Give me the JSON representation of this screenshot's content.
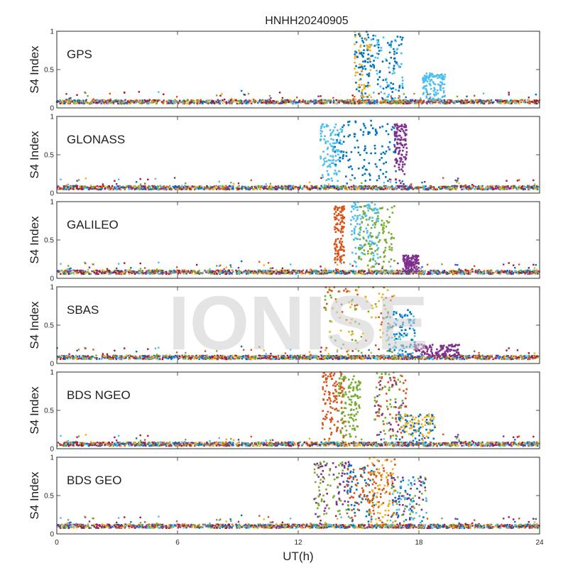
{
  "chart_data": {
    "type": "scatter",
    "title": "HNHH20240905",
    "xlabel": "UT(h)",
    "ylabel": "S4 Index",
    "xlim": [
      0,
      24
    ],
    "ylim": [
      0,
      1
    ],
    "xticks": [
      "0",
      "6",
      "12",
      "18",
      "24"
    ],
    "yticks": [
      "0",
      "0.5",
      "1"
    ],
    "watermark": "IONISE",
    "series_colors": [
      "#0072BD",
      "#D95319",
      "#EDB120",
      "#7E2F8E",
      "#77AC30",
      "#4DBEEE",
      "#A2142F"
    ],
    "panels": [
      {
        "label": "GPS",
        "baseline_s4": 0.08,
        "active_events": [
          {
            "ut_start": 14.8,
            "ut_end": 15.6,
            "max_s4": 1.0,
            "colors": [
              "#EDB120",
              "#0072BD"
            ]
          },
          {
            "ut_start": 15.6,
            "ut_end": 17.2,
            "max_s4": 0.95,
            "colors": [
              "#0072BD",
              "#4DBEEE"
            ]
          },
          {
            "ut_start": 18.2,
            "ut_end": 19.3,
            "max_s4": 0.45,
            "colors": [
              "#4DBEEE"
            ]
          }
        ]
      },
      {
        "label": "GLONASS",
        "baseline_s4": 0.07,
        "active_events": [
          {
            "ut_start": 13.1,
            "ut_end": 14.2,
            "max_s4": 0.9,
            "colors": [
              "#4DBEEE"
            ]
          },
          {
            "ut_start": 13.8,
            "ut_end": 16.9,
            "max_s4": 0.95,
            "colors": [
              "#0072BD"
            ]
          },
          {
            "ut_start": 16.8,
            "ut_end": 17.4,
            "max_s4": 0.9,
            "colors": [
              "#7E2F8E"
            ]
          }
        ]
      },
      {
        "label": "GALILEO",
        "baseline_s4": 0.08,
        "active_events": [
          {
            "ut_start": 13.8,
            "ut_end": 14.3,
            "max_s4": 0.95,
            "colors": [
              "#D95319"
            ]
          },
          {
            "ut_start": 14.6,
            "ut_end": 16.0,
            "max_s4": 1.0,
            "colors": [
              "#4DBEEE"
            ]
          },
          {
            "ut_start": 15.0,
            "ut_end": 16.8,
            "max_s4": 0.95,
            "colors": [
              "#77AC30"
            ]
          },
          {
            "ut_start": 17.2,
            "ut_end": 18.0,
            "max_s4": 0.3,
            "colors": [
              "#7E2F8E"
            ]
          }
        ]
      },
      {
        "label": "SBAS",
        "baseline_s4": 0.08,
        "active_events": [
          {
            "ut_start": 13.3,
            "ut_end": 16.8,
            "max_s4": 1.0,
            "colors": [
              "#D95319",
              "#77AC30",
              "#EDB120"
            ]
          },
          {
            "ut_start": 16.4,
            "ut_end": 17.8,
            "max_s4": 0.7,
            "colors": [
              "#4DBEEE",
              "#0072BD"
            ]
          },
          {
            "ut_start": 17.8,
            "ut_end": 20.0,
            "max_s4": 0.25,
            "colors": [
              "#7E2F8E"
            ]
          }
        ]
      },
      {
        "label": "BDS NGEO",
        "baseline_s4": 0.06,
        "active_events": [
          {
            "ut_start": 13.2,
            "ut_end": 14.3,
            "max_s4": 1.0,
            "colors": [
              "#D95319"
            ]
          },
          {
            "ut_start": 14.0,
            "ut_end": 15.1,
            "max_s4": 0.95,
            "colors": [
              "#77AC30"
            ]
          },
          {
            "ut_start": 15.8,
            "ut_end": 17.4,
            "max_s4": 1.0,
            "colors": [
              "#77AC30",
              "#D95319",
              "#7E2F8E"
            ]
          },
          {
            "ut_start": 17.0,
            "ut_end": 18.8,
            "max_s4": 0.45,
            "colors": [
              "#0072BD",
              "#EDB120"
            ]
          }
        ]
      },
      {
        "label": "BDS GEO",
        "baseline_s4": 0.1,
        "active_events": [
          {
            "ut_start": 12.8,
            "ut_end": 14.6,
            "max_s4": 0.95,
            "colors": [
              "#7E2F8E",
              "#77AC30"
            ]
          },
          {
            "ut_start": 14.4,
            "ut_end": 15.8,
            "max_s4": 0.9,
            "colors": [
              "#D95319",
              "#0072BD"
            ]
          },
          {
            "ut_start": 15.5,
            "ut_end": 16.9,
            "max_s4": 1.0,
            "colors": [
              "#EDB120",
              "#D95319"
            ]
          },
          {
            "ut_start": 16.6,
            "ut_end": 18.4,
            "max_s4": 0.75,
            "colors": [
              "#77AC30",
              "#0072BD",
              "#4DBEEE",
              "#7E2F8E"
            ]
          }
        ]
      }
    ]
  }
}
